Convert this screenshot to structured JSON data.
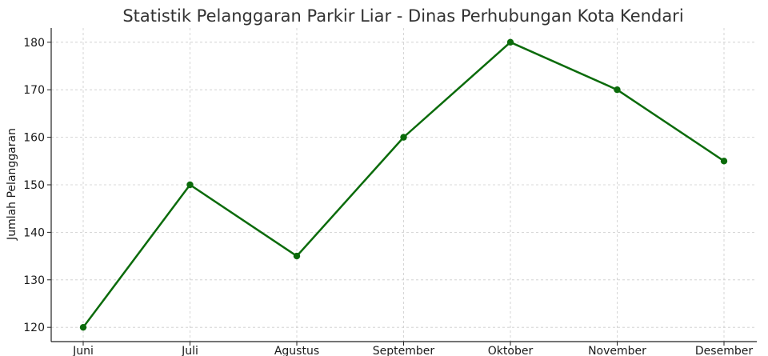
{
  "chart_data": {
    "type": "line",
    "title": "Statistik Pelanggaran Parkir Liar - Dinas Perhubungan Kota Kendari",
    "xlabel": "",
    "ylabel": "Jumlah Pelanggaran",
    "categories": [
      "Juni",
      "Juli",
      "Agustus",
      "September",
      "Oktober",
      "November",
      "Desember"
    ],
    "series": [
      {
        "values": [
          120,
          150,
          135,
          160,
          180,
          170,
          155
        ]
      }
    ],
    "ylim": [
      117,
      183
    ],
    "yticks": [
      120,
      130,
      140,
      150,
      160,
      170,
      180
    ],
    "grid": true,
    "line_color": "#0b6b0b",
    "marker": "circle"
  }
}
